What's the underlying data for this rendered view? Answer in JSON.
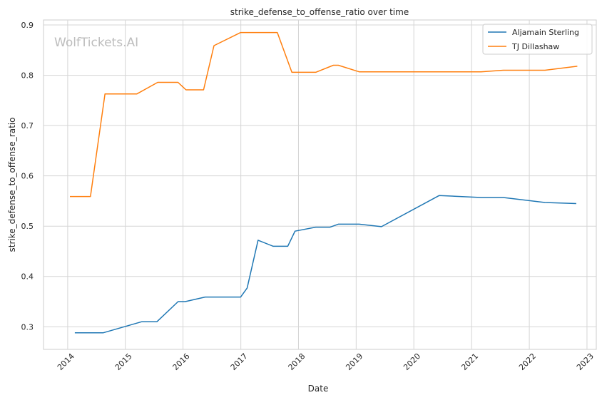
{
  "watermark": "WolfTickets.AI",
  "chart_data": {
    "type": "line",
    "title": "strike_defense_to_offense_ratio over time",
    "xlabel": "Date",
    "ylabel": "strike_defense_to_offense_ratio",
    "x_range": [
      "2013-08-01",
      "2023-03-01"
    ],
    "ylim": [
      0.255,
      0.91
    ],
    "x_ticks": [
      "2014",
      "2015",
      "2016",
      "2017",
      "2018",
      "2019",
      "2020",
      "2021",
      "2022",
      "2023"
    ],
    "y_ticks": [
      "0.3",
      "0.4",
      "0.5",
      "0.6",
      "0.7",
      "0.8",
      "0.9"
    ],
    "y_tick_values": [
      0.3,
      0.4,
      0.5,
      0.6,
      0.7,
      0.8,
      0.9
    ],
    "grid": true,
    "legend_position": "top-right",
    "series": [
      {
        "name": "Aljamain Sterling",
        "color": "#1f77b4",
        "points": [
          [
            "2014-02-15",
            0.288
          ],
          [
            "2014-08-15",
            0.288
          ],
          [
            "2015-04-15",
            0.31
          ],
          [
            "2015-07-20",
            0.31
          ],
          [
            "2015-12-01",
            0.35
          ],
          [
            "2016-01-15",
            0.35
          ],
          [
            "2016-05-20",
            0.359
          ],
          [
            "2016-12-31",
            0.359
          ],
          [
            "2017-02-10",
            0.377
          ],
          [
            "2017-04-20",
            0.472
          ],
          [
            "2017-07-25",
            0.46
          ],
          [
            "2017-10-25",
            0.46
          ],
          [
            "2017-12-10",
            0.49
          ],
          [
            "2018-04-20",
            0.498
          ],
          [
            "2018-07-20",
            0.498
          ],
          [
            "2018-09-10",
            0.504
          ],
          [
            "2019-01-20",
            0.504
          ],
          [
            "2019-06-10",
            0.499
          ],
          [
            "2020-06-10",
            0.561
          ],
          [
            "2021-03-01",
            0.557
          ],
          [
            "2021-07-20",
            0.557
          ],
          [
            "2022-04-10",
            0.547
          ],
          [
            "2022-10-25",
            0.545
          ]
        ]
      },
      {
        "name": "TJ Dillashaw",
        "color": "#ff7f0e",
        "points": [
          [
            "2014-01-15",
            0.559
          ],
          [
            "2014-05-25",
            0.559
          ],
          [
            "2014-08-25",
            0.763
          ],
          [
            "2015-03-15",
            0.763
          ],
          [
            "2015-07-25",
            0.786
          ],
          [
            "2015-11-30",
            0.786
          ],
          [
            "2016-01-20",
            0.771
          ],
          [
            "2016-05-10",
            0.771
          ],
          [
            "2016-07-15",
            0.859
          ],
          [
            "2016-12-31",
            0.885
          ],
          [
            "2017-08-20",
            0.885
          ],
          [
            "2017-11-20",
            0.806
          ],
          [
            "2018-04-20",
            0.806
          ],
          [
            "2018-08-10",
            0.82
          ],
          [
            "2018-09-10",
            0.82
          ],
          [
            "2019-01-20",
            0.807
          ],
          [
            "2021-03-01",
            0.807
          ],
          [
            "2021-07-20",
            0.81
          ],
          [
            "2022-04-10",
            0.81
          ],
          [
            "2022-11-01",
            0.818
          ]
        ]
      }
    ]
  }
}
